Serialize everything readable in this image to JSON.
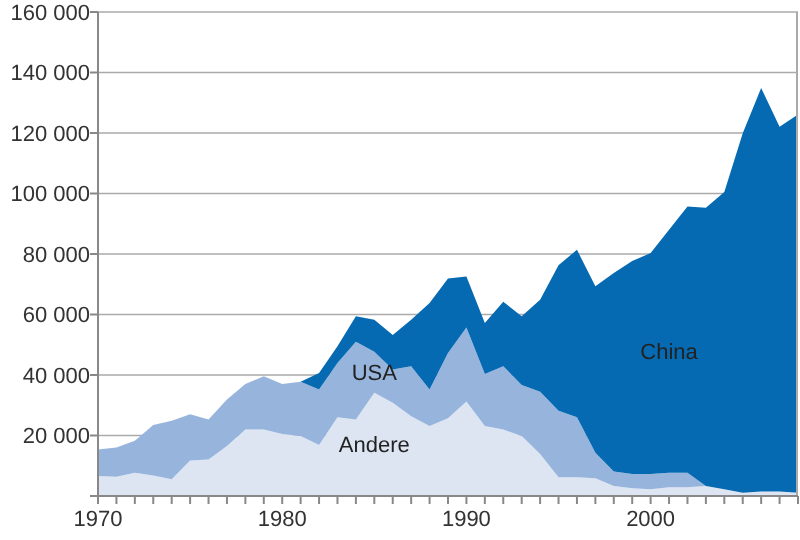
{
  "chart_data": {
    "type": "area",
    "stacked": true,
    "x": [
      1970,
      1971,
      1972,
      1973,
      1974,
      1975,
      1976,
      1977,
      1978,
      1979,
      1980,
      1981,
      1982,
      1983,
      1984,
      1985,
      1986,
      1987,
      1988,
      1989,
      1990,
      1991,
      1992,
      1993,
      1994,
      1995,
      1996,
      1997,
      1998,
      1999,
      2000,
      2001,
      2002,
      2003,
      2004,
      2005,
      2006,
      2007,
      2008
    ],
    "series": [
      {
        "name": "Andere",
        "color": "#dde5f2",
        "values": [
          6600,
          6400,
          7700,
          6800,
          5500,
          11700,
          12100,
          16500,
          22000,
          22000,
          20500,
          19800,
          16900,
          26000,
          25300,
          34100,
          30800,
          26400,
          23100,
          25700,
          31200,
          23100,
          22000,
          19800,
          13900,
          6200,
          6200,
          5900,
          3300,
          2600,
          2200,
          2900,
          2900,
          3300,
          2200,
          1100,
          1500,
          1500,
          1100
        ]
      },
      {
        "name": "USA",
        "color": "#97b5dc",
        "values": [
          8800,
          9600,
          10600,
          16700,
          19400,
          15300,
          13200,
          15400,
          15000,
          17600,
          16500,
          18000,
          18300,
          18000,
          25700,
          13600,
          11000,
          16500,
          12100,
          21600,
          24500,
          17200,
          20900,
          16900,
          20600,
          22000,
          19800,
          8400,
          4800,
          4700,
          5100,
          4800,
          4800,
          0,
          0,
          0,
          0,
          0,
          0
        ]
      },
      {
        "name": "China",
        "color": "#066ab2",
        "values": [
          0,
          0,
          0,
          0,
          0,
          0,
          0,
          0,
          0,
          0,
          0,
          0,
          5500,
          5500,
          8400,
          10600,
          11400,
          15400,
          28600,
          24600,
          16900,
          16900,
          21300,
          22700,
          30400,
          48100,
          55400,
          55000,
          65600,
          70400,
          73000,
          80300,
          88000,
          92000,
          98300,
          118800,
          133400,
          120600,
          125000
        ]
      }
    ],
    "xlim": [
      1970,
      2008
    ],
    "xticks": [
      1970,
      {
        "value": 1971,
        "label": null
      },
      {
        "value": 1972,
        "label": null
      },
      {
        "value": 1973,
        "label": null
      },
      {
        "value": 1974,
        "label": null
      },
      {
        "value": 1975,
        "label": null
      },
      {
        "value": 1976,
        "label": null
      },
      {
        "value": 1977,
        "label": null
      },
      {
        "value": 1978,
        "label": null
      },
      {
        "value": 1979,
        "label": null
      },
      1980,
      {
        "value": 1981,
        "label": null
      },
      {
        "value": 1982,
        "label": null
      },
      {
        "value": 1983,
        "label": null
      },
      {
        "value": 1984,
        "label": null
      },
      {
        "value": 1985,
        "label": null
      },
      {
        "value": 1986,
        "label": null
      },
      {
        "value": 1987,
        "label": null
      },
      {
        "value": 1988,
        "label": null
      },
      {
        "value": 1989,
        "label": null
      },
      1990,
      {
        "value": 1991,
        "label": null
      },
      {
        "value": 1992,
        "label": null
      },
      {
        "value": 1993,
        "label": null
      },
      {
        "value": 1994,
        "label": null
      },
      {
        "value": 1995,
        "label": null
      },
      {
        "value": 1996,
        "label": null
      },
      {
        "value": 1997,
        "label": null
      },
      {
        "value": 1998,
        "label": null
      },
      {
        "value": 1999,
        "label": null
      },
      2000,
      {
        "value": 2001,
        "label": null
      },
      {
        "value": 2002,
        "label": null
      },
      {
        "value": 2003,
        "label": null
      },
      {
        "value": 2004,
        "label": null
      },
      {
        "value": 2005,
        "label": null
      },
      {
        "value": 2006,
        "label": null
      },
      {
        "value": 2007,
        "label": null
      },
      {
        "value": 2008,
        "label": null
      }
    ],
    "ylim": [
      0,
      160000
    ],
    "yticks": [
      {
        "value": 0,
        "label": null
      },
      {
        "value": 20000,
        "label": "20 000"
      },
      {
        "value": 40000,
        "label": "40 000"
      },
      {
        "value": 60000,
        "label": "60 000"
      },
      {
        "value": 80000,
        "label": "80 000"
      },
      {
        "value": 100000,
        "label": "100 000"
      },
      {
        "value": 120000,
        "label": "120 000"
      },
      {
        "value": 140000,
        "label": "140 000"
      },
      {
        "value": 160000,
        "label": "160 000"
      }
    ],
    "grid": "y"
  }
}
